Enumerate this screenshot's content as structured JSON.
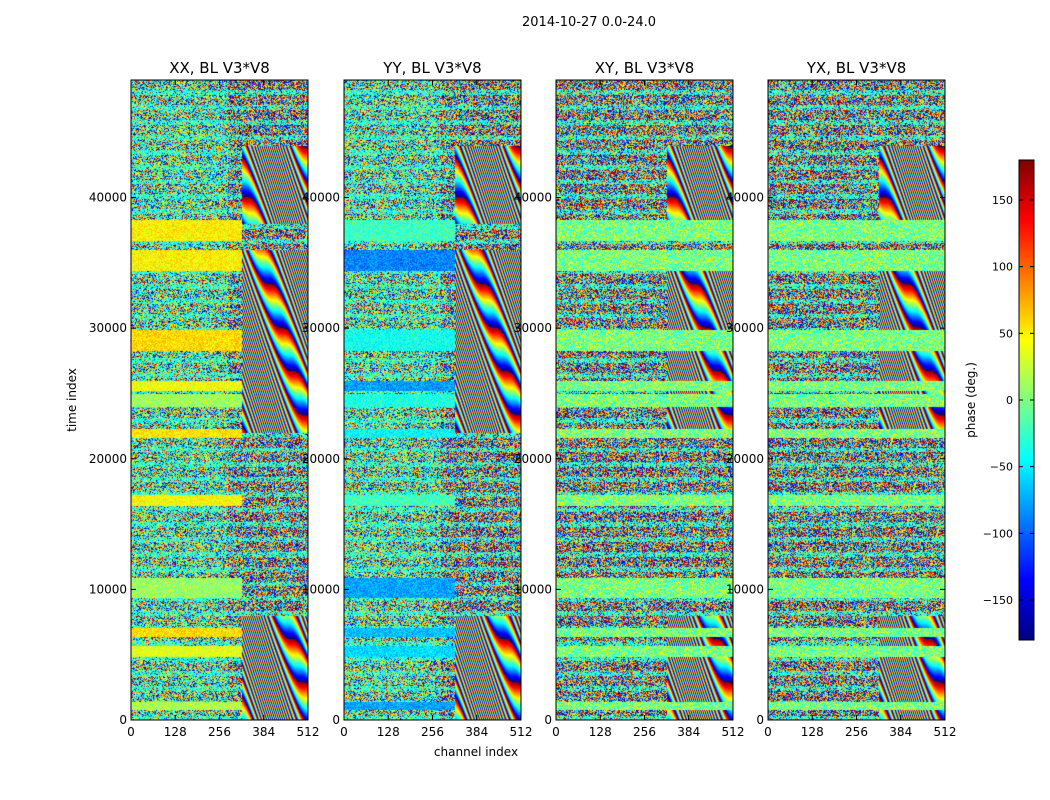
{
  "figure": {
    "suptitle": "2014-10-27 0.0-24.0"
  },
  "chart_data": {
    "type": "heatmap",
    "panels": [
      {
        "title": "XX, BL V3*V8"
      },
      {
        "title": "YY, BL V3*V8"
      },
      {
        "title": "XY, BL V3*V8"
      },
      {
        "title": "YX, BL V3*V8"
      }
    ],
    "xlabel": "channel index",
    "ylabel": "time index",
    "xlim": [
      0,
      512
    ],
    "ylim": [
      0,
      49000
    ],
    "xticks": [
      0,
      128,
      256,
      384,
      512
    ],
    "yticks": [
      0,
      10000,
      20000,
      30000,
      40000
    ],
    "colorbar": {
      "label": "phase (deg.)",
      "range": [
        -180,
        180
      ],
      "ticks": [
        -150,
        -100,
        -50,
        0,
        50,
        100,
        150
      ],
      "colormap": "jet",
      "colors": [
        "#00007f",
        "#0000ff",
        "#007fff",
        "#00ffff",
        "#7fff7f",
        "#ffff00",
        "#ff7f00",
        "#ff0000",
        "#7f0000"
      ]
    },
    "flagged_bands_approx": [
      [
        800,
        1400
      ],
      [
        4900,
        5700
      ],
      [
        6400,
        7100
      ],
      [
        9400,
        10900
      ],
      [
        16400,
        17300
      ],
      [
        21600,
        22300
      ],
      [
        24000,
        25000
      ],
      [
        25200,
        26000
      ],
      [
        28300,
        29900
      ],
      [
        34400,
        36000
      ],
      [
        36700,
        38300
      ]
    ]
  }
}
